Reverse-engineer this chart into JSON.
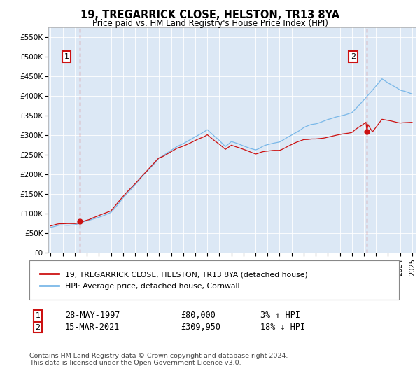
{
  "title": "19, TREGARRICK CLOSE, HELSTON, TR13 8YA",
  "subtitle": "Price paid vs. HM Land Registry's House Price Index (HPI)",
  "ylim": [
    0,
    575000
  ],
  "ytick_labels": [
    "£0",
    "£50K",
    "£100K",
    "£150K",
    "£200K",
    "£250K",
    "£300K",
    "£350K",
    "£400K",
    "£450K",
    "£500K",
    "£550K"
  ],
  "plot_bg_color": "#dce8f5",
  "grid_color": "#ffffff",
  "sale1_year_f": 1997.41,
  "sale1_price": 80000,
  "sale2_year_f": 2021.21,
  "sale2_price": 309950,
  "legend_entry1": "19, TREGARRICK CLOSE, HELSTON, TR13 8YA (detached house)",
  "legend_entry2": "HPI: Average price, detached house, Cornwall",
  "annotation1_date": "28-MAY-1997",
  "annotation1_price": "£80,000",
  "annotation1_hpi": "3% ↑ HPI",
  "annotation2_date": "15-MAR-2021",
  "annotation2_price": "£309,950",
  "annotation2_hpi": "18% ↓ HPI",
  "footer": "Contains HM Land Registry data © Crown copyright and database right 2024.\nThis data is licensed under the Open Government Licence v3.0.",
  "hpi_line_color": "#7ab8e8",
  "price_line_color": "#cc1111",
  "dashed_line_color": "#cc1111"
}
